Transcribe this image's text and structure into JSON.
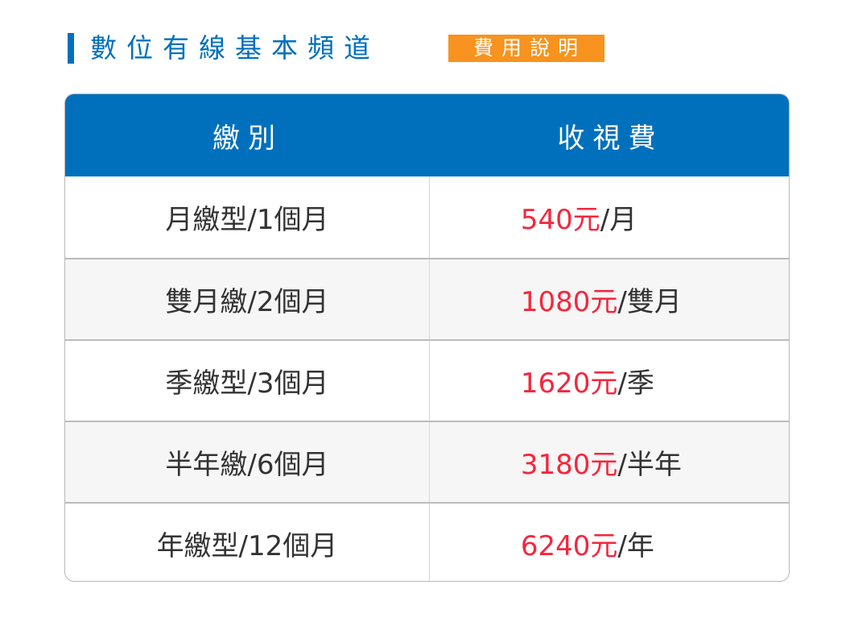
{
  "header": {
    "title": "數位有線基本頻道",
    "badge": "費用說明"
  },
  "colors": {
    "brand_blue": "#0070bc",
    "badge_orange": "#f7931e",
    "price_red": "#f5263d"
  },
  "table": {
    "columns": [
      "繳別",
      "收視費"
    ],
    "rows": [
      {
        "plan": "月繳型/1個月",
        "amount": "540元",
        "unit": "/月"
      },
      {
        "plan": "雙月繳/2個月",
        "amount": "1080元",
        "unit": "/雙月"
      },
      {
        "plan": "季繳型/3個月",
        "amount": "1620元",
        "unit": "/季"
      },
      {
        "plan": "半年繳/6個月",
        "amount": "3180元",
        "unit": "/半年"
      },
      {
        "plan": "年繳型/12個月",
        "amount": "6240元",
        "unit": "/年"
      }
    ]
  }
}
